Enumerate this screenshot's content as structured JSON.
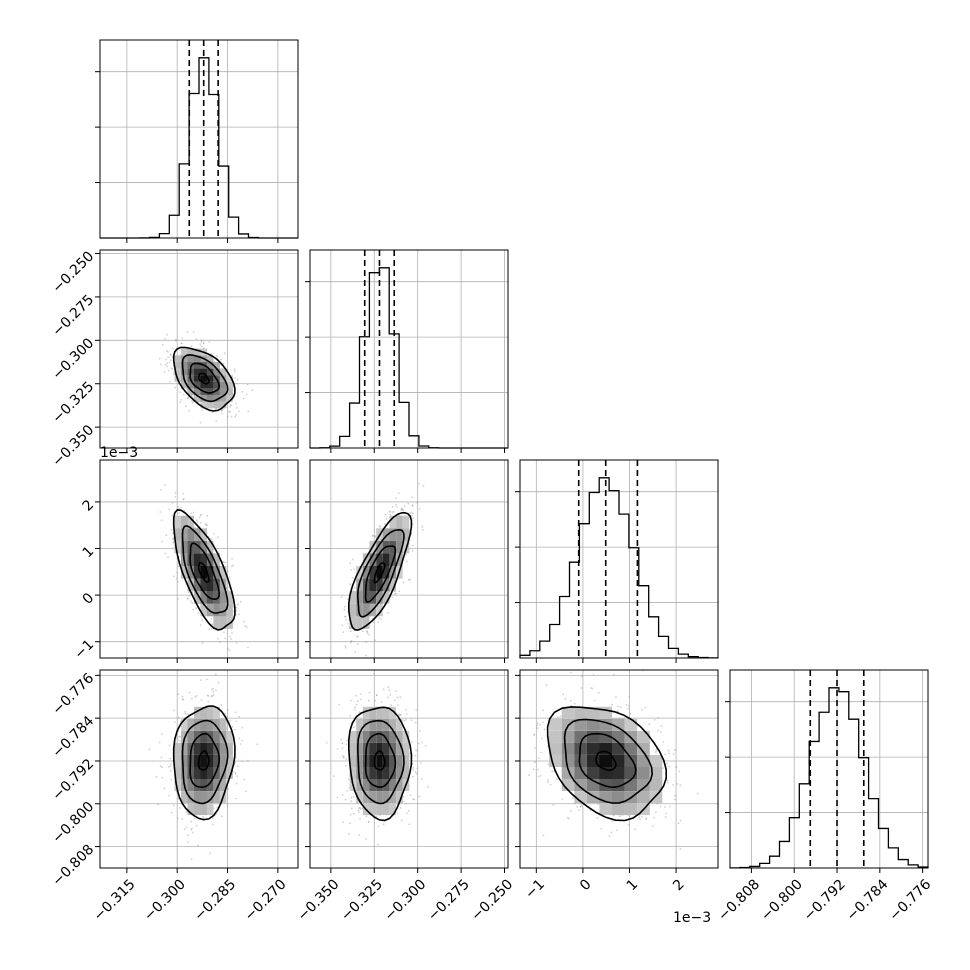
{
  "chart_data": {
    "type": "corner",
    "parameters": [
      {
        "median": -0.2921,
        "q16": -0.2964,
        "q84": -0.2878,
        "sd": 0.0043,
        "lim": [
          -0.323,
          -0.264
        ],
        "ticks": [
          -0.315,
          -0.3,
          -0.285,
          -0.27
        ],
        "tick_labels": [
          "−0.315",
          "−0.300",
          "−0.285",
          "−0.270"
        ]
      },
      {
        "median": -0.322,
        "q16": -0.3305,
        "q84": -0.3135,
        "sd": 0.0085,
        "lim": [
          -0.362,
          -0.248
        ],
        "ticks": [
          -0.35,
          -0.325,
          -0.3,
          -0.275,
          -0.25
        ],
        "tick_labels": [
          "−0.350",
          "−0.325",
          "−0.300",
          "−0.275",
          "−0.250"
        ]
      },
      {
        "median": 0.00049,
        "q16": -9e-05,
        "q84": 0.00117,
        "sd": 0.0006,
        "lim": [
          -0.00135,
          0.0029
        ],
        "ticks": [
          -0.001,
          0,
          0.001,
          0.002
        ],
        "tick_labels": [
          "−1",
          "0",
          "1",
          "2"
        ],
        "offset_label": "1e−3"
      },
      {
        "median": -0.792,
        "q16": -0.797,
        "q84": -0.787,
        "sd": 0.005,
        "lim": [
          -0.812,
          -0.775
        ],
        "ticks": [
          -0.808,
          -0.8,
          -0.792,
          -0.784,
          -0.776
        ],
        "tick_labels": [
          "−0.808",
          "−0.800",
          "−0.792",
          "−0.784",
          "−0.776"
        ]
      }
    ],
    "correlations": [
      {
        "i": 1,
        "j": 0,
        "rho": -0.45
      },
      {
        "i": 2,
        "j": 0,
        "rho": -0.7
      },
      {
        "i": 2,
        "j": 1,
        "rho": 0.75
      },
      {
        "i": 3,
        "j": 0,
        "rho": 0.1
      },
      {
        "i": 3,
        "j": 1,
        "rho": -0.05
      },
      {
        "i": 3,
        "j": 2,
        "rho": -0.3
      }
    ],
    "grid": true,
    "quantiles": [
      0.16,
      0.5,
      0.84
    ],
    "colors": {
      "line": "#000000",
      "grid": "#b0b0b0",
      "points": "#9a9a9a"
    }
  }
}
